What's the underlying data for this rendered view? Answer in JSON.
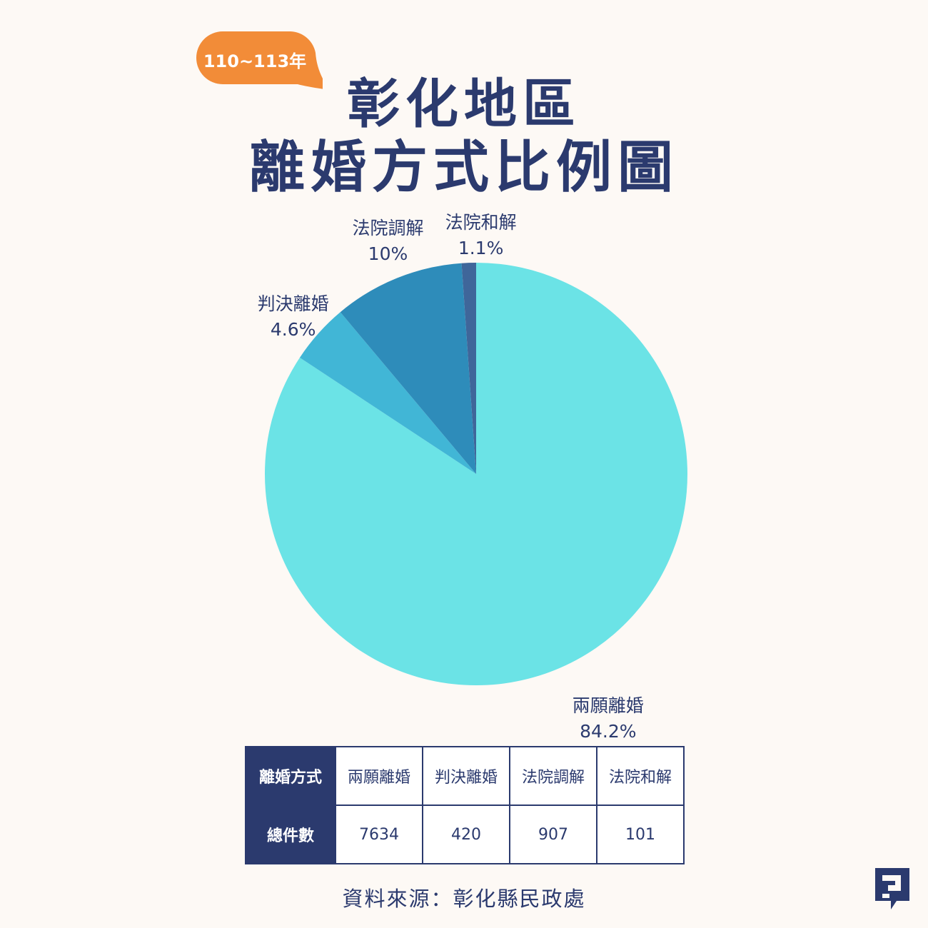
{
  "badge": {
    "text": "110~113年",
    "color": "#f28c38"
  },
  "title": {
    "line1": "彰化地區",
    "line2": "離婚方式比例圖"
  },
  "chart_data": {
    "type": "pie",
    "slices": [
      {
        "label": "兩願離婚",
        "value": 84.2,
        "display": "84.2%",
        "color": "#6be3e6"
      },
      {
        "label": "判決離婚",
        "value": 4.6,
        "display": "4.6%",
        "color": "#41b6d6"
      },
      {
        "label": "法院調解",
        "value": 10,
        "display": "10%",
        "color": "#2e8cba"
      },
      {
        "label": "法院和解",
        "value": 1.1,
        "display": "1.1%",
        "color": "#3f669a"
      }
    ]
  },
  "table": {
    "header_label": "離婚方式",
    "row_label": "總件數",
    "columns": [
      "兩願離婚",
      "判決離婚",
      "法院調解",
      "法院和解"
    ],
    "counts": [
      "7634",
      "420",
      "907",
      "101"
    ]
  },
  "source": "資料來源：彰化縣民政處",
  "colors": {
    "text": "#2b3a6e",
    "background": "#fdf9f5"
  },
  "logo_icon": "reporter-logo-icon"
}
